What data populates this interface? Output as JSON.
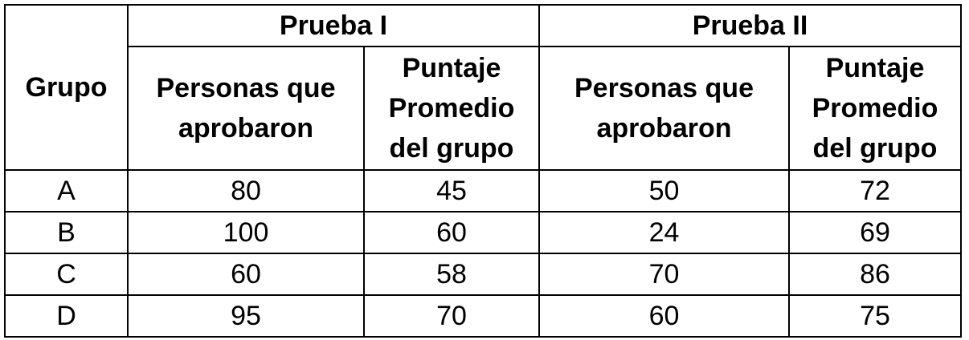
{
  "table": {
    "corner_label": "Grupo",
    "test_headers": [
      "Prueba I",
      "Prueba II"
    ],
    "subheaders": {
      "passed": [
        "Personas que",
        "aprobaron"
      ],
      "average": [
        "Puntaje",
        "Promedio",
        "del grupo"
      ]
    },
    "rows": [
      {
        "group": "A",
        "t1_passed": "80",
        "t1_avg": "45",
        "t2_passed": "50",
        "t2_avg": "72"
      },
      {
        "group": "B",
        "t1_passed": "100",
        "t1_avg": "60",
        "t2_passed": "24",
        "t2_avg": "69"
      },
      {
        "group": "C",
        "t1_passed": "60",
        "t1_avg": "58",
        "t2_passed": "70",
        "t2_avg": "86"
      },
      {
        "group": "D",
        "t1_passed": "95",
        "t1_avg": "70",
        "t2_passed": "60",
        "t2_avg": "75"
      }
    ]
  }
}
